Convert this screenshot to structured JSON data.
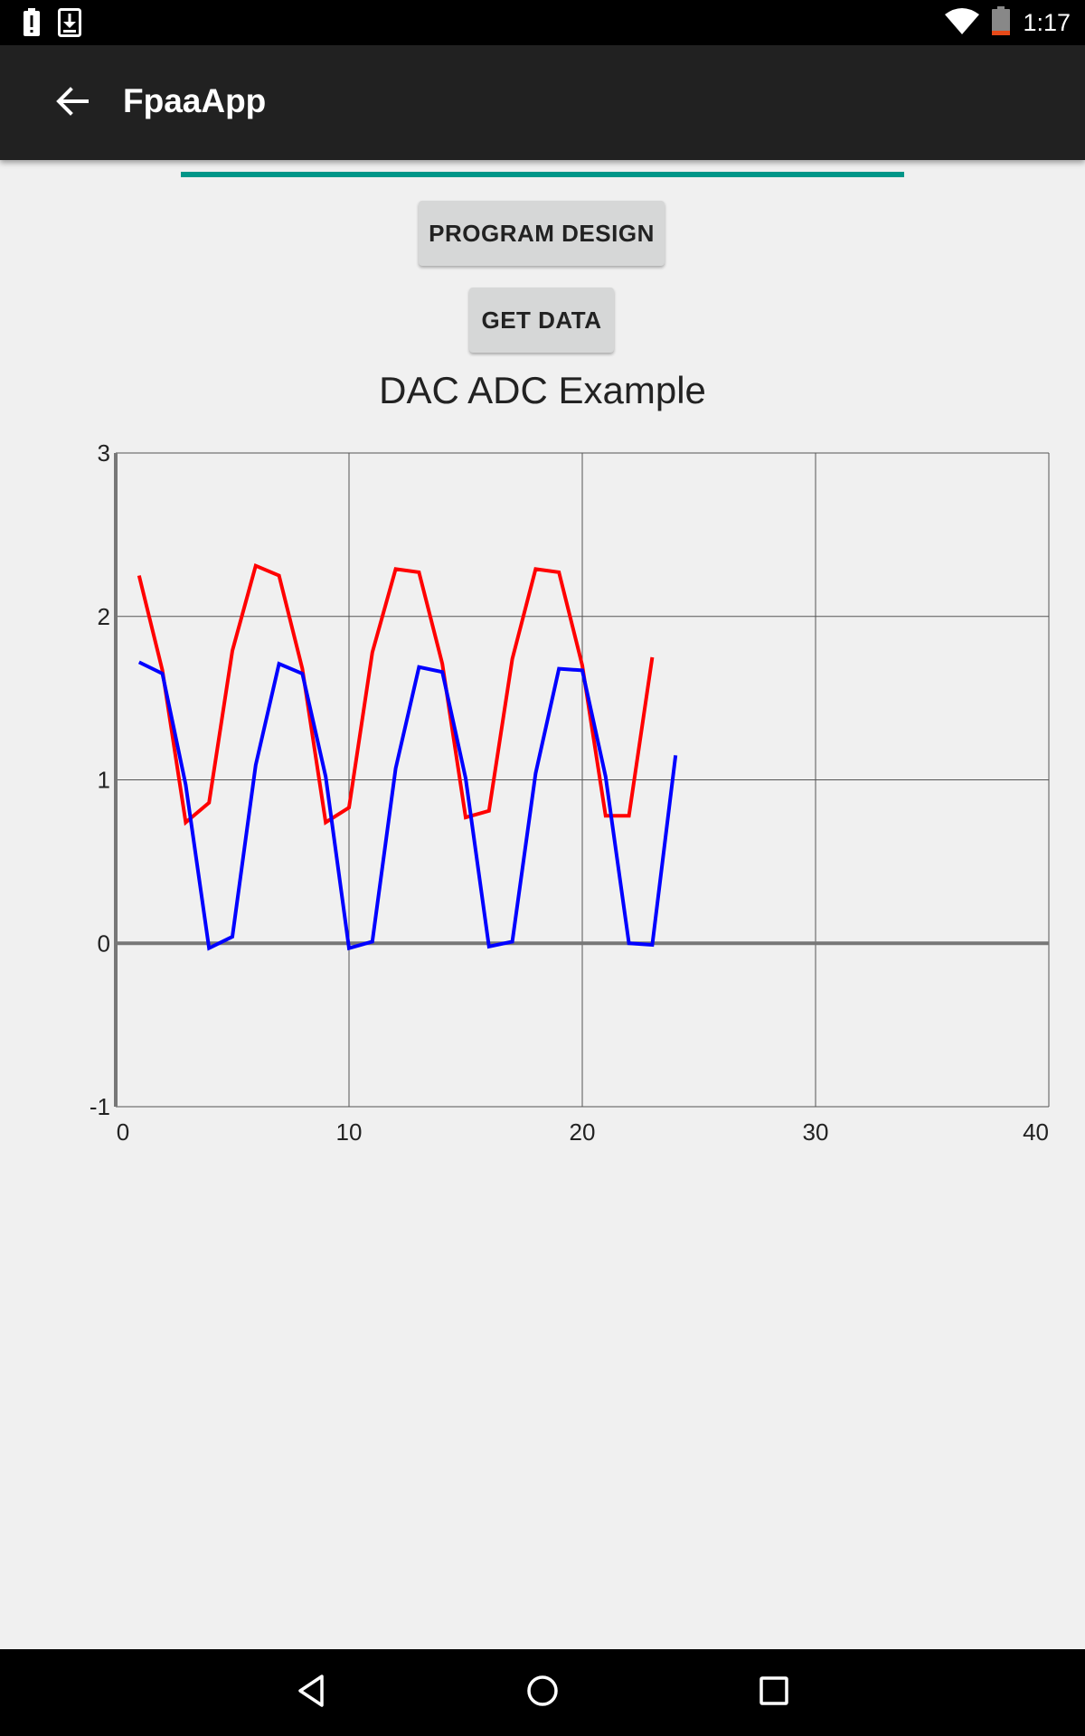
{
  "status_bar": {
    "time": "1:17",
    "icons": [
      "battery-alert-icon",
      "download-icon",
      "wifi-icon",
      "battery-low-icon"
    ]
  },
  "app_bar": {
    "title": "FpaaApp",
    "back_icon": "arrow-left-icon"
  },
  "progress": {
    "value": 1.0,
    "color": "#009688"
  },
  "buttons": {
    "program_design": "PROGRAM DESIGN",
    "get_data": "GET DATA"
  },
  "chart_data": {
    "type": "line",
    "title": "DAC ADC Example",
    "xlabel": "",
    "ylabel": "",
    "xlim": [
      0,
      40
    ],
    "ylim": [
      -1,
      3
    ],
    "x_ticks": [
      0,
      10,
      20,
      30,
      40
    ],
    "y_ticks": [
      -1,
      0,
      1,
      2,
      3
    ],
    "grid": true,
    "series": [
      {
        "color": "#ff0000",
        "x": [
          1,
          2,
          3,
          4,
          5,
          6,
          7,
          8,
          9,
          10,
          11,
          12,
          13,
          14,
          15,
          16,
          17,
          18,
          19,
          20,
          21,
          22,
          23
        ],
        "y": [
          2.25,
          1.67,
          0.74,
          0.86,
          1.79,
          2.31,
          2.25,
          1.68,
          0.74,
          0.83,
          1.78,
          2.29,
          2.27,
          1.71,
          0.77,
          0.81,
          1.74,
          2.29,
          2.27,
          1.7,
          0.78,
          0.78,
          1.75
        ]
      },
      {
        "color": "#0000ff",
        "x": [
          1,
          2,
          3,
          4,
          5,
          6,
          7,
          8,
          9,
          10,
          11,
          12,
          13,
          14,
          15,
          16,
          17,
          18,
          19,
          20,
          21,
          22,
          23,
          24
        ],
        "y": [
          1.72,
          1.65,
          0.97,
          -0.03,
          0.04,
          1.09,
          1.71,
          1.65,
          1.02,
          -0.03,
          0.01,
          1.07,
          1.69,
          1.66,
          1.01,
          -0.02,
          0.01,
          1.04,
          1.68,
          1.67,
          1.02,
          0.0,
          -0.01,
          1.15
        ]
      }
    ]
  },
  "nav_bar": {
    "icons": [
      "nav-back-icon",
      "nav-home-icon",
      "nav-recent-icon"
    ]
  }
}
